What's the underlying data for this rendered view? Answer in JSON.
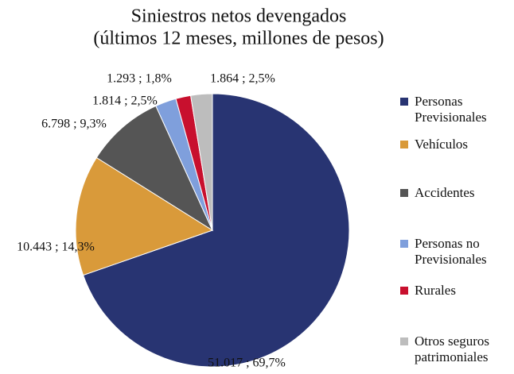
{
  "chart_data": {
    "type": "pie",
    "title": "Siniestros netos devengados",
    "subtitle": "(últimos 12 meses, millones de pesos)",
    "categories": [
      "Personas Previsionales",
      "Vehículos",
      "Accidentes",
      "Personas no Previsionales",
      "Rurales",
      "Otros seguros patrimoniales"
    ],
    "values": [
      51017,
      10443,
      6798,
      1814,
      1293,
      1864
    ],
    "value_labels": [
      "51.017 ; 69,7%",
      "10.443 ; 14,3%",
      "6.798 ; 9,3%",
      "1.814 ; 2,5%",
      "1.293 ; 1,8%",
      "1.864 ; 2,5%"
    ],
    "colors": [
      "#283472",
      "#d99a3a",
      "#555555",
      "#7f9fdc",
      "#c8102e",
      "#bdbdbd"
    ],
    "legend": "right"
  }
}
